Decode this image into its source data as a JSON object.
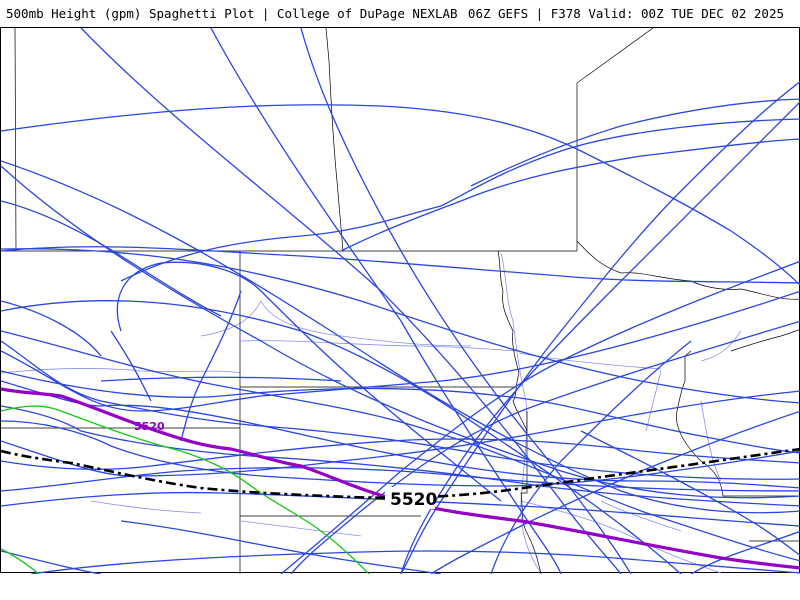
{
  "header": {
    "left": "500mb Height (gpm) Spaghetti Plot | College of DuPage NEXLAB",
    "right": "06Z GEFS | F378 Valid: 00Z TUE DEC 02 2025"
  },
  "map": {
    "contour_level_mean_label": "5520",
    "contour_level_member_label": "5520",
    "colors": {
      "members": "#2b46e0",
      "highlight_member": "#9400c8",
      "alt_member": "#17c717",
      "ensemble_mean": "#000000",
      "borders": "#000000",
      "rivers": "#8a8ff0",
      "background": "#ffffff"
    }
  }
}
